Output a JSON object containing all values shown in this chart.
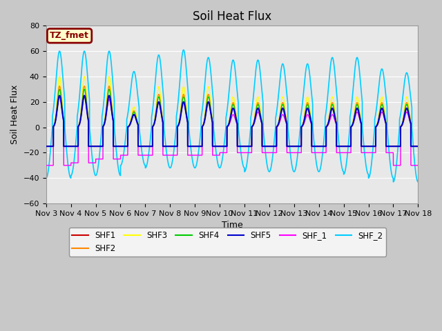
{
  "title": "Soil Heat Flux",
  "ylabel": "Soil Heat Flux",
  "xlabel": "Time",
  "ylim": [
    -60,
    80
  ],
  "yticks": [
    -60,
    -40,
    -20,
    0,
    20,
    40,
    60,
    80
  ],
  "start_day": 3,
  "end_day": 18,
  "month": "Nov",
  "series_colors": {
    "SHF1": "#cc0000",
    "SHF2": "#ff8800",
    "SHF3": "#ffff00",
    "SHF4": "#00cc00",
    "SHF5": "#0000cc",
    "SHF_1": "#ff00ff",
    "SHF_2": "#00ccff"
  },
  "legend_label": "TZ_fmet",
  "legend_bg": "#ffffcc",
  "legend_edge": "#880000",
  "fig_bg": "#c8c8c8",
  "plot_bg": "#e8e8e8",
  "title_fontsize": 12,
  "axis_label_fontsize": 9,
  "tick_fontsize": 8
}
